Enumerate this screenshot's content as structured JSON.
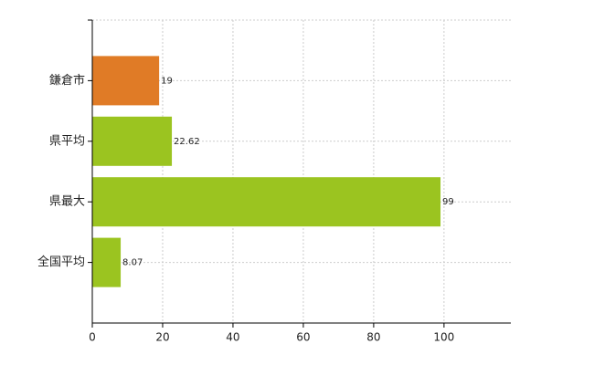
{
  "chart_data": {
    "type": "barh",
    "categories": [
      "鎌倉市",
      "県平均",
      "県最大",
      "全国平均"
    ],
    "values": [
      19,
      22.62,
      99,
      8.07
    ],
    "colors": [
      "#e07b26",
      "#9bc420",
      "#9bc420",
      "#9bc420"
    ],
    "xlim": [
      0,
      119
    ],
    "xticks": [
      0,
      20,
      40,
      60,
      80,
      100
    ],
    "grid": true
  }
}
